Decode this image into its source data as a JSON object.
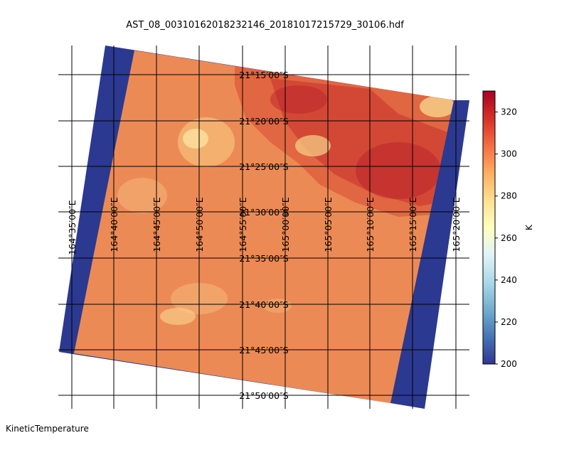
{
  "title": "AST_08_00310162018232146_20181017215729_30106.hdf",
  "footer_label": "KineticTemperature",
  "map": {
    "latitude_labels": [
      "21°15′00″S",
      "21°20′00″S",
      "21°25′00″S",
      "21°30′00″S",
      "21°35′00″S",
      "21°40′00″S",
      "21°45′00″S",
      "21°50′00″S"
    ],
    "longitude_labels": [
      "164°35′00″E",
      "164°40′00″E",
      "164°45′00″E",
      "164°50′00″E",
      "164°55′00″E",
      "165°00′00″E",
      "165°05′00″E",
      "165°10′00″E",
      "165°15′00″E",
      "165°20′00″E"
    ],
    "fill_color": "#2b3990"
  },
  "colorbar": {
    "unit": "K",
    "min": 200,
    "max": 330,
    "ticks": [
      "200",
      "220",
      "240",
      "260",
      "280",
      "300",
      "320"
    ],
    "colormap": "RdYlBu_r"
  }
}
